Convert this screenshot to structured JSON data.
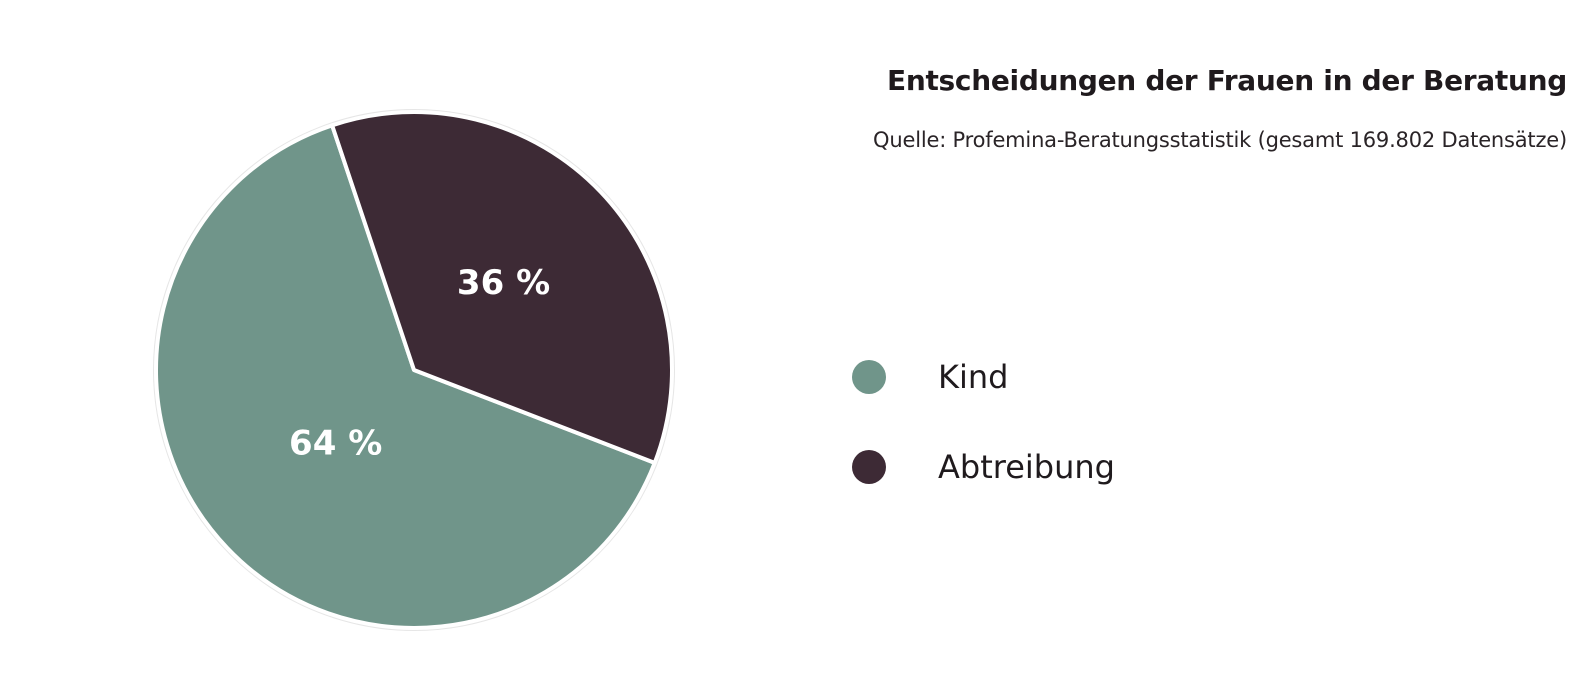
{
  "chart_data": {
    "type": "pie",
    "title": "Entscheidungen der Frauen in der Beratung",
    "subtitle": "Quelle: Profemina-Beratungsstatistik (gesamt 169.802 Datensätze)",
    "legend_position": "right",
    "slices": [
      {
        "name": "Kind",
        "value": 64,
        "label": "64 %",
        "color": "#70958a"
      },
      {
        "name": "Abtreibung",
        "value": 36,
        "label": "36 %",
        "color": "#3d2a35"
      }
    ]
  }
}
